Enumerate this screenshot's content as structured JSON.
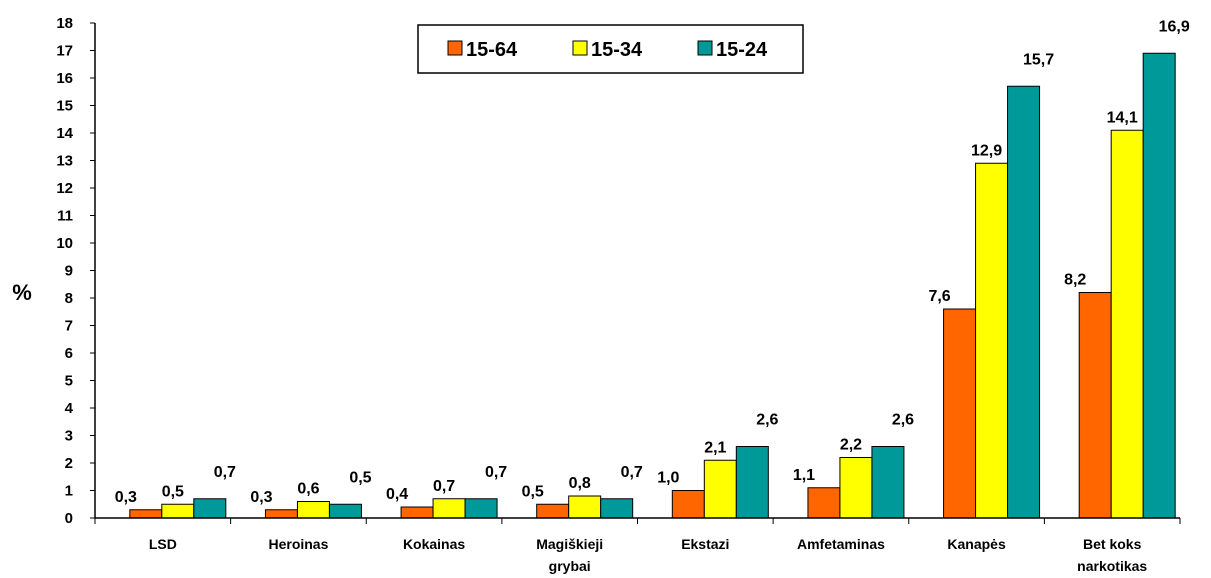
{
  "chart_data": {
    "type": "bar",
    "ylabel": "%",
    "ylim": [
      0,
      18
    ],
    "yticks": [
      "0",
      "1",
      "2",
      "3",
      "4",
      "5",
      "6",
      "7",
      "8",
      "9",
      "10",
      "11",
      "12",
      "13",
      "14",
      "15",
      "16",
      "17",
      "18"
    ],
    "grid": false,
    "legend_position": "top-center",
    "categories": [
      [
        "LSD"
      ],
      [
        "Heroinas"
      ],
      [
        "Kokainas"
      ],
      [
        "Magiškieji",
        "grybai"
      ],
      [
        "Ekstazi"
      ],
      [
        "Amfetaminas"
      ],
      [
        "Kanapės"
      ],
      [
        "Bet koks",
        "narkotikas"
      ]
    ],
    "series": [
      {
        "name": "15-64",
        "color": "#ff6600",
        "values": [
          0.3,
          0.3,
          0.4,
          0.5,
          1.0,
          1.1,
          7.6,
          8.2
        ],
        "labels": [
          "0,3",
          "0,3",
          "0,4",
          "0,5",
          "1,0",
          "1,1",
          "7,6",
          "8,2"
        ]
      },
      {
        "name": "15-34",
        "color": "#ffff00",
        "values": [
          0.5,
          0.6,
          0.7,
          0.8,
          2.1,
          2.2,
          12.9,
          14.1
        ],
        "labels": [
          "0,5",
          "0,6",
          "0,7",
          "0,8",
          "2,1",
          "2,2",
          "12,9",
          "14,1"
        ]
      },
      {
        "name": "15-24",
        "color": "#009999",
        "values": [
          0.7,
          0.5,
          0.7,
          0.7,
          2.6,
          2.6,
          15.7,
          16.9
        ],
        "labels": [
          "0,7",
          "0,5",
          "0,7",
          "0,7",
          "2,6",
          "2,6",
          "15,7",
          "16,9"
        ]
      }
    ]
  }
}
